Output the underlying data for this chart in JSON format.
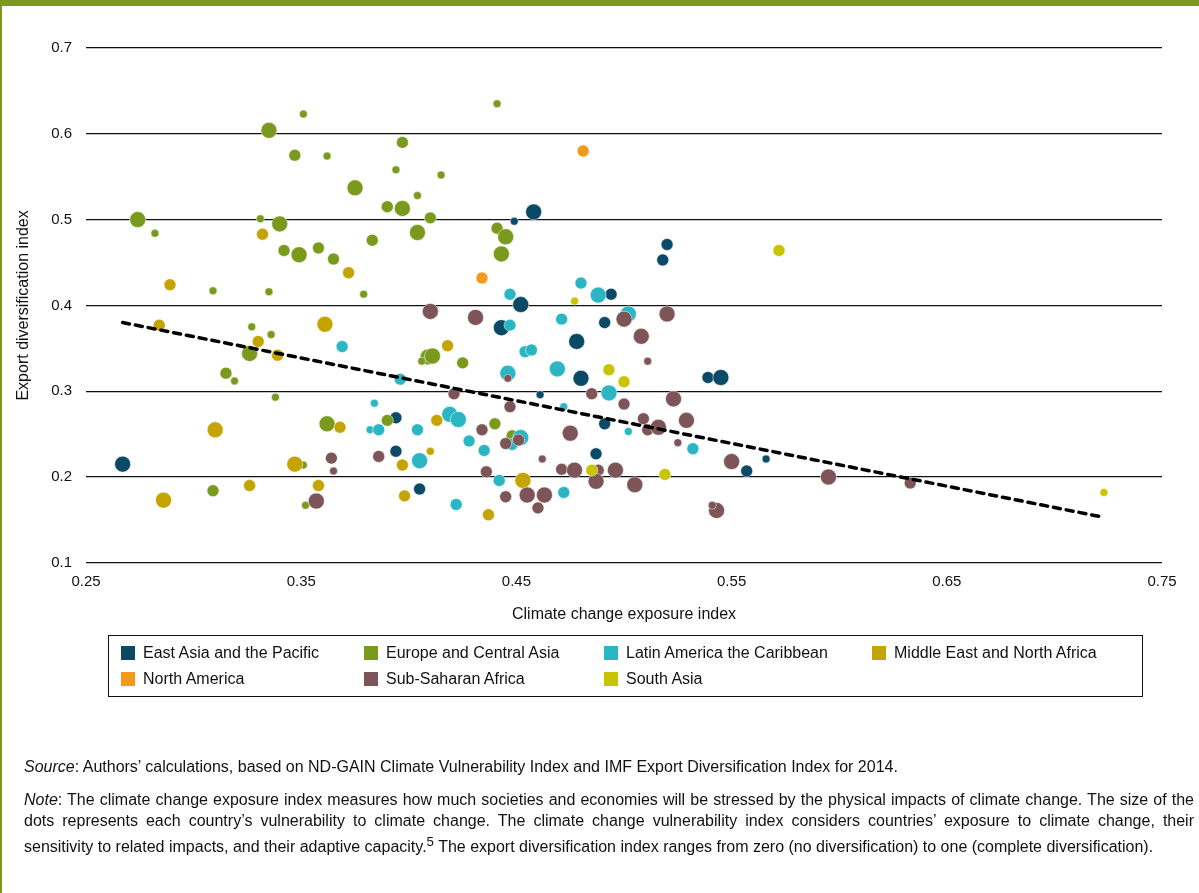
{
  "chart_data": {
    "type": "bubble",
    "xlabel": "Climate change exposure index",
    "ylabel": "Export diversification index",
    "xlim": [
      0.25,
      0.75
    ],
    "xticks": [
      0.25,
      0.35,
      0.45,
      0.55,
      0.65,
      0.75
    ],
    "ylim": [
      0.1,
      0.7
    ],
    "yticks": [
      0.1,
      0.2,
      0.3,
      0.4,
      0.5,
      0.6,
      0.7
    ],
    "grid": "y",
    "legend": "bottom",
    "series": [
      {
        "name": "East Asia and the Pacific",
        "color": "#0b4a66",
        "x": [
          0.267,
          0.394,
          0.394,
          0.405,
          0.449,
          0.458,
          0.452,
          0.443,
          0.461,
          0.478,
          0.48,
          0.494,
          0.491,
          0.491,
          0.487,
          0.52,
          0.518,
          0.539,
          0.545,
          0.566,
          0.557
        ],
        "values": [
          0.215,
          0.269,
          0.23,
          0.186,
          0.498,
          0.509,
          0.401,
          0.374,
          0.296,
          0.358,
          0.315,
          0.413,
          0.38,
          0.262,
          0.227,
          0.471,
          0.453,
          0.316,
          0.316,
          0.221,
          0.207
        ],
        "sizes": [
          1,
          0.56,
          0.56,
          0.56,
          0.25,
          1,
          1,
          1,
          0.25,
          1,
          1,
          0.56,
          0.56,
          0.56,
          0.56,
          0.56,
          0.56,
          0.56,
          1,
          0.25,
          0.56
        ]
      },
      {
        "name": "Europe and Central Asia",
        "color": "#7a9a1e",
        "x": [
          0.274,
          0.282,
          0.309,
          0.331,
          0.335,
          0.351,
          0.347,
          0.362,
          0.375,
          0.389,
          0.34,
          0.342,
          0.349,
          0.358,
          0.365,
          0.383,
          0.335,
          0.379,
          0.327,
          0.336,
          0.315,
          0.319,
          0.338,
          0.362,
          0.39,
          0.309,
          0.352,
          0.351,
          0.326,
          0.441,
          0.397,
          0.394,
          0.415,
          0.404,
          0.39,
          0.397,
          0.41,
          0.404,
          0.441,
          0.445,
          0.443,
          0.409,
          0.411,
          0.406,
          0.425,
          0.44,
          0.448
        ],
        "values": [
          0.5,
          0.484,
          0.417,
          0.501,
          0.604,
          0.623,
          0.575,
          0.574,
          0.537,
          0.515,
          0.495,
          0.464,
          0.459,
          0.467,
          0.454,
          0.476,
          0.416,
          0.413,
          0.375,
          0.366,
          0.321,
          0.312,
          0.293,
          0.262,
          0.266,
          0.184,
          0.167,
          0.214,
          0.344,
          0.635,
          0.59,
          0.558,
          0.552,
          0.528,
          0.515,
          0.513,
          0.502,
          0.485,
          0.49,
          0.48,
          0.46,
          0.34,
          0.341,
          0.335,
          0.333,
          0.262,
          0.248
        ],
        "sizes": [
          1,
          0.25,
          0.25,
          0.25,
          1,
          0.25,
          0.56,
          0.25,
          1,
          0.25,
          1,
          0.56,
          1,
          0.56,
          0.56,
          0.56,
          0.25,
          0.25,
          0.25,
          0.25,
          0.56,
          0.25,
          0.25,
          1,
          0.56,
          0.56,
          0.25,
          0.25,
          1,
          0.25,
          0.56,
          0.25,
          0.25,
          0.25,
          0.56,
          1,
          0.56,
          1,
          0.56,
          1,
          1,
          1,
          1,
          0.25,
          0.56,
          0.56,
          0.56
        ]
      },
      {
        "name": "Latin America the Caribbean",
        "color": "#2bb6c4",
        "x": [
          0.369,
          0.396,
          0.384,
          0.382,
          0.386,
          0.405,
          0.404,
          0.419,
          0.423,
          0.428,
          0.435,
          0.442,
          0.422,
          0.447,
          0.447,
          0.446,
          0.454,
          0.457,
          0.448,
          0.452,
          0.469,
          0.471,
          0.48,
          0.488,
          0.502,
          0.472,
          0.493,
          0.502,
          0.472,
          0.532
        ],
        "values": [
          0.352,
          0.314,
          0.286,
          0.255,
          0.255,
          0.219,
          0.255,
          0.273,
          0.267,
          0.242,
          0.231,
          0.196,
          0.168,
          0.413,
          0.377,
          0.321,
          0.346,
          0.348,
          0.238,
          0.246,
          0.326,
          0.384,
          0.426,
          0.412,
          0.39,
          0.282,
          0.298,
          0.253,
          0.182,
          0.233
        ],
        "sizes": [
          0.56,
          0.56,
          0.25,
          0.25,
          0.56,
          1,
          0.56,
          1,
          1,
          0.56,
          0.56,
          0.56,
          0.56,
          0.56,
          0.56,
          1,
          0.56,
          0.56,
          0.56,
          1,
          1,
          0.56,
          0.56,
          1,
          1,
          0.25,
          1,
          0.25,
          0.56,
          0.56
        ]
      },
      {
        "name": "Middle East and North Africa",
        "color": "#c4a400",
        "x": [
          0.332,
          0.289,
          0.372,
          0.284,
          0.361,
          0.33,
          0.339,
          0.31,
          0.368,
          0.347,
          0.326,
          0.358,
          0.286,
          0.418,
          0.413,
          0.41,
          0.397,
          0.398,
          0.453,
          0.437
        ],
        "values": [
          0.483,
          0.424,
          0.438,
          0.377,
          0.378,
          0.358,
          0.342,
          0.255,
          0.258,
          0.215,
          0.19,
          0.19,
          0.173,
          0.353,
          0.266,
          0.23,
          0.214,
          0.178,
          0.196,
          0.156
        ],
        "sizes": [
          0.56,
          0.56,
          0.56,
          0.56,
          1,
          0.56,
          0.56,
          1,
          0.56,
          1,
          0.56,
          0.56,
          1,
          0.56,
          0.56,
          0.25,
          0.56,
          0.56,
          1,
          0.56
        ]
      },
      {
        "name": "North America",
        "color": "#f39a1c",
        "x": [
          0.481,
          0.434
        ],
        "values": [
          0.58,
          0.432
        ],
        "sizes": [
          0.56,
          0.56
        ]
      },
      {
        "name": "Sub-Saharan Africa",
        "color": "#7d5457",
        "x": [
          0.364,
          0.365,
          0.386,
          0.357,
          0.41,
          0.431,
          0.421,
          0.447,
          0.446,
          0.434,
          0.445,
          0.451,
          0.462,
          0.475,
          0.436,
          0.445,
          0.455,
          0.463,
          0.46,
          0.471,
          0.477,
          0.488,
          0.487,
          0.496,
          0.505,
          0.485,
          0.5,
          0.5,
          0.508,
          0.511,
          0.509,
          0.511,
          0.516,
          0.52,
          0.523,
          0.529,
          0.525,
          0.55,
          0.595,
          0.633,
          0.543,
          0.541
        ],
        "values": [
          0.222,
          0.207,
          0.224,
          0.172,
          0.393,
          0.386,
          0.297,
          0.282,
          0.315,
          0.255,
          0.239,
          0.243,
          0.221,
          0.251,
          0.206,
          0.177,
          0.179,
          0.179,
          0.164,
          0.209,
          0.208,
          0.208,
          0.195,
          0.208,
          0.191,
          0.297,
          0.285,
          0.384,
          0.364,
          0.335,
          0.268,
          0.255,
          0.258,
          0.39,
          0.291,
          0.266,
          0.24,
          0.218,
          0.2,
          0.193,
          0.161,
          0.167
        ],
        "sizes": [
          0.56,
          0.25,
          0.56,
          1,
          1,
          1,
          0.56,
          0.56,
          0.25,
          0.56,
          0.56,
          0.56,
          0.25,
          1,
          0.56,
          0.56,
          1,
          1,
          0.56,
          0.56,
          1,
          0.56,
          1,
          1,
          1,
          0.56,
          0.56,
          1,
          1,
          0.25,
          0.56,
          0.56,
          1,
          1,
          1,
          1,
          0.25,
          1,
          1,
          0.56,
          1,
          0.25
        ]
      },
      {
        "name": "South Asia",
        "color": "#c8c400",
        "x": [
          0.477,
          0.493,
          0.5,
          0.485,
          0.572,
          0.519,
          0.723
        ],
        "values": [
          0.405,
          0.325,
          0.311,
          0.208,
          0.464,
          0.203,
          0.182
        ],
        "sizes": [
          0.25,
          0.56,
          0.56,
          0.56,
          0.56,
          0.56,
          0.25
        ]
      },
      {
        "type": "line",
        "color": "#000000",
        "line_style": "dashed",
        "marker": "none",
        "x": [
          0.267,
          0.723
        ],
        "values": [
          0.38,
          0.153
        ]
      }
    ],
    "annotations": [
      "Source: Authors’ calculations, based on ND-GAIN Climate Vulnerability Index and IMF Export Diversification Index for 2014.",
      "Note: The climate change exposure index measures how much societies and economies will be stressed by the physical impacts of climate change. The size of the dots represents each country’s vulnerability to climate change. The climate change vulnerability index considers countries’ exposure to climate change, their sensitivity to related impacts, and their adaptive capacity.$^{5}$ The export diversification index ranges from zero (no diversification) to one (complete diversification)."
    ]
  }
}
